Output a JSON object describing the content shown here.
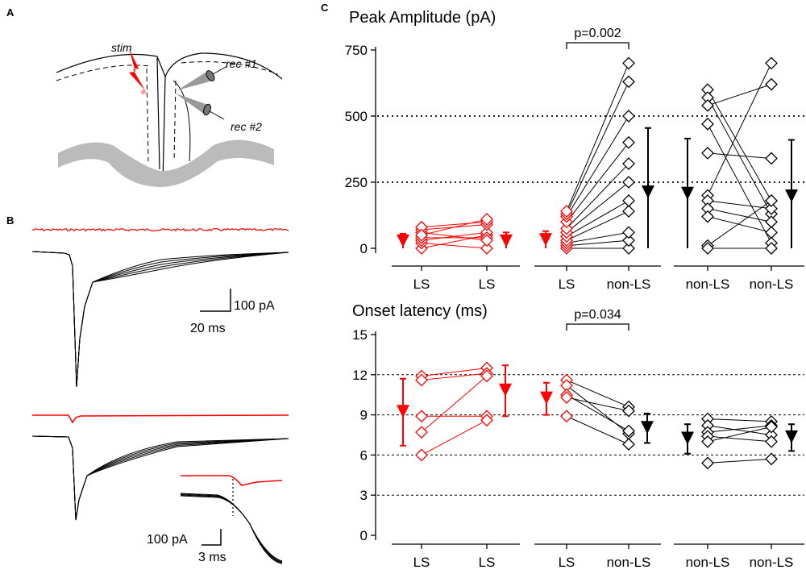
{
  "panel_labels": {
    "a": "A",
    "b": "B",
    "c": "C"
  },
  "schematic": {
    "stim": "stim",
    "rec1": "rec #1",
    "rec2": "rec #2"
  },
  "traces": {
    "scale1_current": "100 pA",
    "scale1_time": "20 ms",
    "scale2_current": "100 pA",
    "scale2_time": "3 ms"
  },
  "colors": {
    "ls": "#ff0000",
    "non_ls": "#000000",
    "trace_gray": "#bbbbbb"
  },
  "chart_data": [
    {
      "type": "scatter",
      "title": "Peak Amplitude (pA)",
      "ylabel": "",
      "ylim": [
        0,
        750
      ],
      "yticks": [
        0,
        250,
        500,
        750
      ],
      "ytick_labels": [
        "0",
        "250",
        "500",
        "750"
      ],
      "ref_lines": [
        250,
        500
      ],
      "groups": [
        {
          "x_labels": [
            "LS",
            "LS"
          ],
          "color": "red",
          "pairs": [
            [
              0,
              50
            ],
            [
              20,
              0
            ],
            [
              30,
              60
            ],
            [
              40,
              40
            ],
            [
              60,
              30
            ],
            [
              70,
              90
            ],
            [
              80,
              100
            ],
            [
              50,
              110
            ]
          ],
          "summary": [
            {
              "side": "left",
              "mean": 25,
              "err": 30
            },
            {
              "side": "right",
              "mean": 25,
              "err": 35
            }
          ]
        },
        {
          "x_labels": [
            "LS",
            "non-LS"
          ],
          "color": "mixed",
          "significance": "p=0.002",
          "pairs": [
            [
              0,
              0
            ],
            [
              10,
              30
            ],
            [
              20,
              60
            ],
            [
              30,
              140
            ],
            [
              45,
              180
            ],
            [
              60,
              250
            ],
            [
              75,
              320
            ],
            [
              100,
              400
            ],
            [
              120,
              500
            ],
            [
              130,
              630
            ],
            [
              140,
              700
            ]
          ],
          "summary": [
            {
              "side": "left",
              "mean": 30,
              "err": 35
            },
            {
              "side": "right",
              "mean": 210,
              "err": 245
            }
          ]
        },
        {
          "x_labels": [
            "non-LS",
            "non-LS"
          ],
          "color": "black",
          "pairs": [
            [
              600,
              180
            ],
            [
              570,
              130
            ],
            [
              540,
              620
            ],
            [
              470,
              20
            ],
            [
              360,
              340
            ],
            [
              200,
              700
            ],
            [
              180,
              150
            ],
            [
              150,
              100
            ],
            [
              120,
              60
            ],
            [
              10,
              180
            ],
            [
              0,
              0
            ]
          ],
          "summary": [
            {
              "side": "left",
              "mean": 205,
              "err": 210
            },
            {
              "side": "right",
              "mean": 195,
              "err": 215
            }
          ]
        }
      ]
    },
    {
      "type": "scatter",
      "title": "Onset latency (ms)",
      "ylabel": "",
      "ylim": [
        0,
        15
      ],
      "yticks": [
        0,
        3,
        6,
        9,
        12,
        15
      ],
      "ytick_labels": [
        "0",
        "3",
        "6",
        "9",
        "12",
        "15"
      ],
      "ref_lines": [
        3,
        6,
        9,
        12
      ],
      "groups": [
        {
          "x_labels": [
            "LS",
            "LS"
          ],
          "color": "red",
          "pairs": [
            [
              11.9,
              12.5
            ],
            [
              11.6,
              12.1
            ],
            [
              8.9,
              8.9
            ],
            [
              7.7,
              11.9
            ],
            [
              6.0,
              8.6
            ]
          ],
          "summary": [
            {
              "side": "left",
              "mean": 9.2,
              "err": 2.5
            },
            {
              "side": "right",
              "mean": 10.8,
              "err": 1.9
            }
          ]
        },
        {
          "x_labels": [
            "LS",
            "non-LS"
          ],
          "color": "mixed",
          "significance": "p=0.034",
          "pairs": [
            [
              11.6,
              9.6
            ],
            [
              11.2,
              7.6
            ],
            [
              10.5,
              7.8
            ],
            [
              10.3,
              9.3
            ],
            [
              8.9,
              6.8
            ]
          ],
          "summary": [
            {
              "side": "left",
              "mean": 10.2,
              "err": 1.2
            },
            {
              "side": "right",
              "mean": 8.0,
              "err": 1.1
            }
          ]
        },
        {
          "x_labels": [
            "non-LS",
            "non-LS"
          ],
          "color": "black",
          "pairs": [
            [
              8.7,
              8.5
            ],
            [
              8.2,
              7.5
            ],
            [
              7.7,
              8.2
            ],
            [
              7.4,
              7.0
            ],
            [
              7.0,
              8.1
            ],
            [
              5.4,
              5.7
            ]
          ],
          "summary": [
            {
              "side": "left",
              "mean": 7.2,
              "err": 1.1
            },
            {
              "side": "right",
              "mean": 7.3,
              "err": 1.0
            }
          ]
        }
      ]
    }
  ]
}
